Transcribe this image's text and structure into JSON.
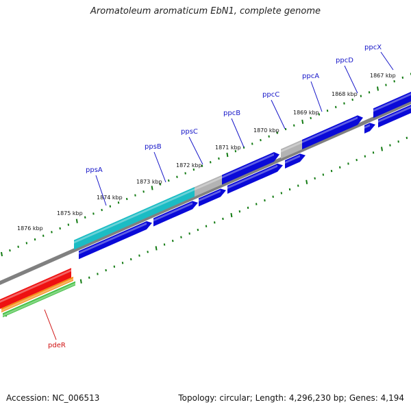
{
  "title": "Aromatoleum aromaticum EbN1, complete genome",
  "accession": "Accession: NC_006513",
  "summary": "Topology: circular; Length: 4,296,230 bp; Genes: 4,194",
  "colors": {
    "forward_cds": "#0a0ad8",
    "reverse_cds": "#0a0ad8",
    "highlight_cds": "#1bbcc4",
    "gray_cds": "#b3b3b3",
    "backbone": "#808080",
    "tick": "#117a11",
    "label_blue": "#1515c8",
    "label_red": "#d01010",
    "red_track": "#ee1111",
    "orange_track": "#f58a10",
    "green_track": "#44c044"
  },
  "tick_labels": [
    "1876 kbp",
    "1875 kbp",
    "1874 kbp",
    "1873 kbp",
    "1872 kbp",
    "1871 kbp",
    "1870 kbp",
    "1869 kbp",
    "1868 kbp",
    "1867 kbp"
  ],
  "gene_labels": [
    {
      "name": "ppsA",
      "color": "label_blue"
    },
    {
      "name": "ppsB",
      "color": "label_blue"
    },
    {
      "name": "ppsC",
      "color": "label_blue"
    },
    {
      "name": "ppcB",
      "color": "label_blue"
    },
    {
      "name": "ppcC",
      "color": "label_blue"
    },
    {
      "name": "ppcA",
      "color": "label_blue"
    },
    {
      "name": "ppcD",
      "color": "label_blue"
    },
    {
      "name": "ppcX",
      "color": "label_blue"
    },
    {
      "name": "pdeR",
      "color": "label_red"
    }
  ]
}
